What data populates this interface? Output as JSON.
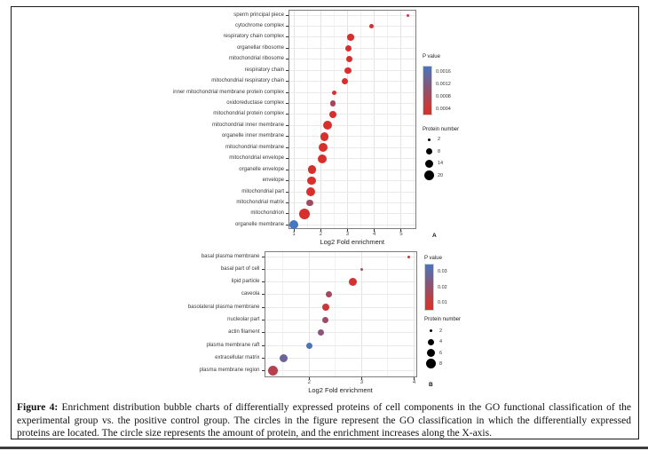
{
  "figure": {
    "caption_prefix": "Figure 4:",
    "caption_text": "Enrichment distribution bubble charts of differentially expressed proteins of cell components in the GO functional classification of the experimental group vs. the positive control group. The circles in the figure represent the GO classification in which the differentially expressed proteins are located. The circle size represents the amount of protein, and the enrichment increases along the X-axis."
  },
  "chart_data": [
    {
      "type": "scatter",
      "panel_label": "A",
      "xlabel": "Log2 Fold enrichment",
      "x_ticks": [
        "1",
        "2",
        "3",
        "4",
        "5"
      ],
      "x_tick_values": [
        1,
        2,
        3,
        4,
        5
      ],
      "xlim": [
        0.8,
        5.55
      ],
      "grid": true,
      "legend_position": "right",
      "color_low": "#d7302c",
      "color_high": "#4676bf",
      "color_domain": [
        0.0002,
        0.0018
      ],
      "legend": {
        "pvalue_title": "P value",
        "pvalue_ticks": [
          {
            "label": "0.0016",
            "value": 0.0016
          },
          {
            "label": "0.0012",
            "value": 0.0012
          },
          {
            "label": "0.0008",
            "value": 0.0008
          },
          {
            "label": "0.0004",
            "value": 0.0004
          }
        ],
        "size_title": "Protein number",
        "sizes": [
          {
            "label": "2",
            "value": 2
          },
          {
            "label": "8",
            "value": 8
          },
          {
            "label": "14",
            "value": 14
          },
          {
            "label": "20",
            "value": 20
          }
        ]
      },
      "points": [
        {
          "label": "sperm principal piece",
          "x": 5.25,
          "protein_number": 2,
          "p_value": 0.0005
        },
        {
          "label": "cytochrome complex",
          "x": 3.9,
          "protein_number": 6,
          "p_value": 0.0003
        },
        {
          "label": "respiratory chain complex",
          "x": 3.12,
          "protein_number": 9,
          "p_value": 0.0002
        },
        {
          "label": "organellar ribosome",
          "x": 3.05,
          "protein_number": 8,
          "p_value": 0.0002
        },
        {
          "label": "mitochondrial ribosome",
          "x": 3.06,
          "protein_number": 8,
          "p_value": 0.0002
        },
        {
          "label": "respiratory chain",
          "x": 3.02,
          "protein_number": 9,
          "p_value": 0.0002
        },
        {
          "label": "mitochondrial respiratory chain",
          "x": 2.9,
          "protein_number": 8,
          "p_value": 0.0002
        },
        {
          "label": "inner mitochondrial membrane protein complex",
          "x": 2.52,
          "protein_number": 5,
          "p_value": 0.0003
        },
        {
          "label": "oxidoreductase complex",
          "x": 2.46,
          "protein_number": 7,
          "p_value": 0.0007
        },
        {
          "label": "mitochondrial protein complex",
          "x": 2.44,
          "protein_number": 11,
          "p_value": 0.0002
        },
        {
          "label": "mitochondrial inner membrane",
          "x": 2.24,
          "protein_number": 17,
          "p_value": 0.0002
        },
        {
          "label": "organelle inner membrane",
          "x": 2.14,
          "protein_number": 16,
          "p_value": 0.0002
        },
        {
          "label": "mitochondrial membrane",
          "x": 2.09,
          "protein_number": 18,
          "p_value": 0.0002
        },
        {
          "label": "mitochondrial envelope",
          "x": 2.06,
          "protein_number": 18,
          "p_value": 0.0002
        },
        {
          "label": "organelle envelope",
          "x": 1.68,
          "protein_number": 16,
          "p_value": 0.0002
        },
        {
          "label": "envelope",
          "x": 1.66,
          "protein_number": 16,
          "p_value": 0.0002
        },
        {
          "label": "mitochondrial part",
          "x": 1.62,
          "protein_number": 18,
          "p_value": 0.0002
        },
        {
          "label": "mitochondrial matrix",
          "x": 1.59,
          "protein_number": 9,
          "p_value": 0.0008
        },
        {
          "label": "mitochondrion",
          "x": 1.39,
          "protein_number": 24,
          "p_value": 0.0002
        },
        {
          "label": "organelle membrane",
          "x": 1.0,
          "protein_number": 17,
          "p_value": 0.0018
        }
      ]
    },
    {
      "type": "scatter",
      "panel_label": "B",
      "xlabel": "Log2 Fold enrichment",
      "x_ticks": [
        "2",
        "3",
        "4"
      ],
      "x_tick_values": [
        2,
        3,
        4
      ],
      "xlim": [
        1.14,
        4.05
      ],
      "grid": true,
      "legend_position": "right",
      "color_low": "#d7302c",
      "color_high": "#4676bf",
      "color_domain": [
        0.005,
        0.035
      ],
      "legend": {
        "pvalue_title": "P value",
        "pvalue_ticks": [
          {
            "label": "0.03",
            "value": 0.03
          },
          {
            "label": "0.02",
            "value": 0.02
          },
          {
            "label": "0.01",
            "value": 0.01
          }
        ],
        "size_title": "Protein number",
        "sizes": [
          {
            "label": "2",
            "value": 2
          },
          {
            "label": "4",
            "value": 4
          },
          {
            "label": "6",
            "value": 6
          },
          {
            "label": "8",
            "value": 8
          }
        ]
      },
      "points": [
        {
          "label": "basal plasma membrane",
          "x": 3.9,
          "protein_number": 2,
          "p_value": 0.007
        },
        {
          "label": "basal part of cell",
          "x": 3.0,
          "protein_number": 2,
          "p_value": 0.019
        },
        {
          "label": "lipid particle",
          "x": 2.83,
          "protein_number": 6,
          "p_value": 0.006
        },
        {
          "label": "caveola",
          "x": 2.38,
          "protein_number": 4,
          "p_value": 0.015
        },
        {
          "label": "basolateral plasma membrane",
          "x": 2.31,
          "protein_number": 5,
          "p_value": 0.007
        },
        {
          "label": "nucleolar part",
          "x": 2.3,
          "protein_number": 4,
          "p_value": 0.017
        },
        {
          "label": "actin filament",
          "x": 2.22,
          "protein_number": 4,
          "p_value": 0.021
        },
        {
          "label": "plasma membrane raft",
          "x": 2.01,
          "protein_number": 4,
          "p_value": 0.034
        },
        {
          "label": "extracellular matrix",
          "x": 1.51,
          "protein_number": 6,
          "p_value": 0.027
        },
        {
          "label": "plasma membrane region",
          "x": 1.31,
          "protein_number": 8,
          "p_value": 0.012
        }
      ]
    }
  ]
}
